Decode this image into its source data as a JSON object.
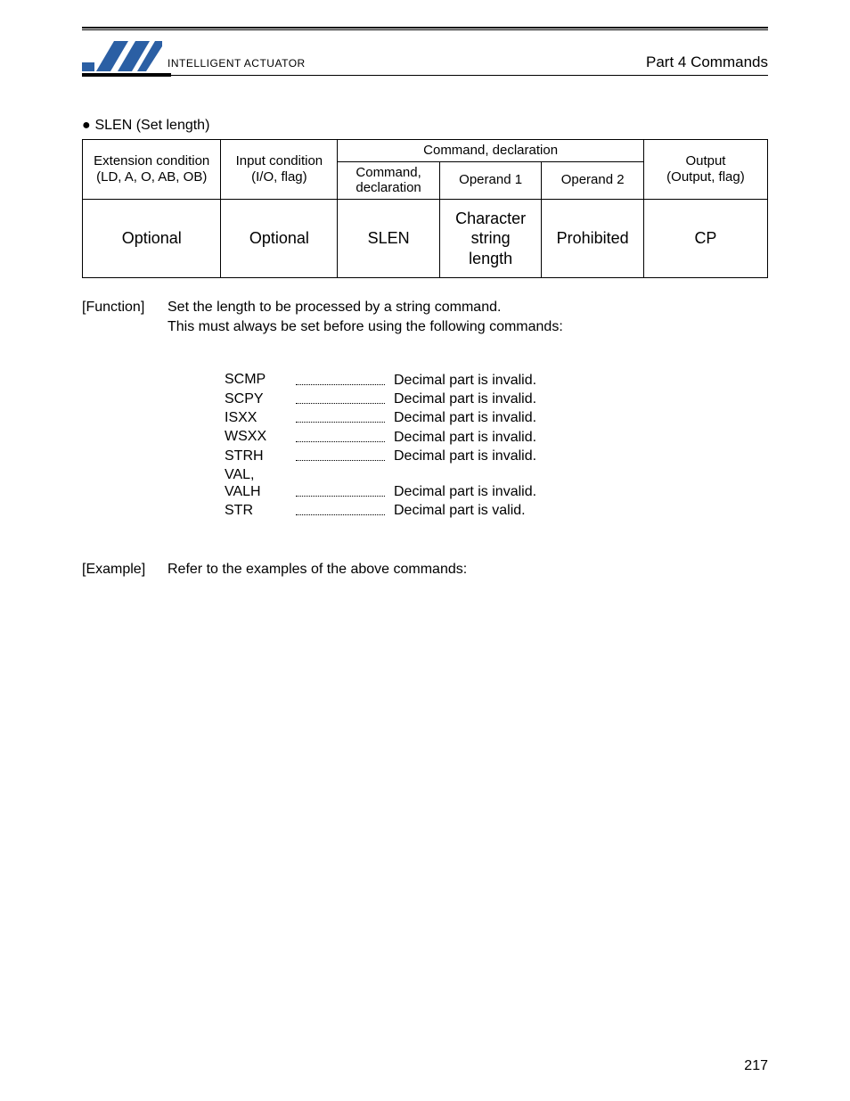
{
  "header": {
    "part_label": "Part 4   Commands",
    "logo_text": "INTELLIGENT ACTUATOR",
    "logo_color": "#2b5fa4"
  },
  "section": {
    "bullet_title": "SLEN (Set length)"
  },
  "table": {
    "headers": {
      "ext_l1": "Extension condition",
      "ext_l2": "(LD, A, O, AB, OB)",
      "inp_l1": "Input condition",
      "inp_l2": "(I/O, flag)",
      "cmd_group": "Command, declaration",
      "cmd_sub": "Command, declaration",
      "op1": "Operand 1",
      "op2": "Operand 2",
      "out_l1": "Output",
      "out_l2": "(Output, flag)"
    },
    "row": {
      "ext": "Optional",
      "inp": "Optional",
      "cmd": "SLEN",
      "op1": "Character string length",
      "op2": "Prohibited",
      "out": "CP"
    }
  },
  "function": {
    "label": "[Function]",
    "line1": "Set the length to be processed by a string command.",
    "line2": "This must always be set before using the following commands:"
  },
  "commands": [
    {
      "name": "SCMP",
      "desc": "Decimal part is invalid."
    },
    {
      "name": "SCPY",
      "desc": "Decimal part is invalid."
    },
    {
      "name": "ISXX",
      "desc": "Decimal part is invalid."
    },
    {
      "name": "WSXX",
      "desc": "Decimal part is invalid."
    },
    {
      "name": "STRH",
      "desc": "Decimal part is invalid."
    },
    {
      "name": "VAL, VALH",
      "desc": "Decimal part is invalid."
    },
    {
      "name": "STR",
      "desc": "Decimal part is valid."
    }
  ],
  "example": {
    "label": "[Example]",
    "text": "Refer to the examples of the above commands:"
  },
  "page_number": "217"
}
